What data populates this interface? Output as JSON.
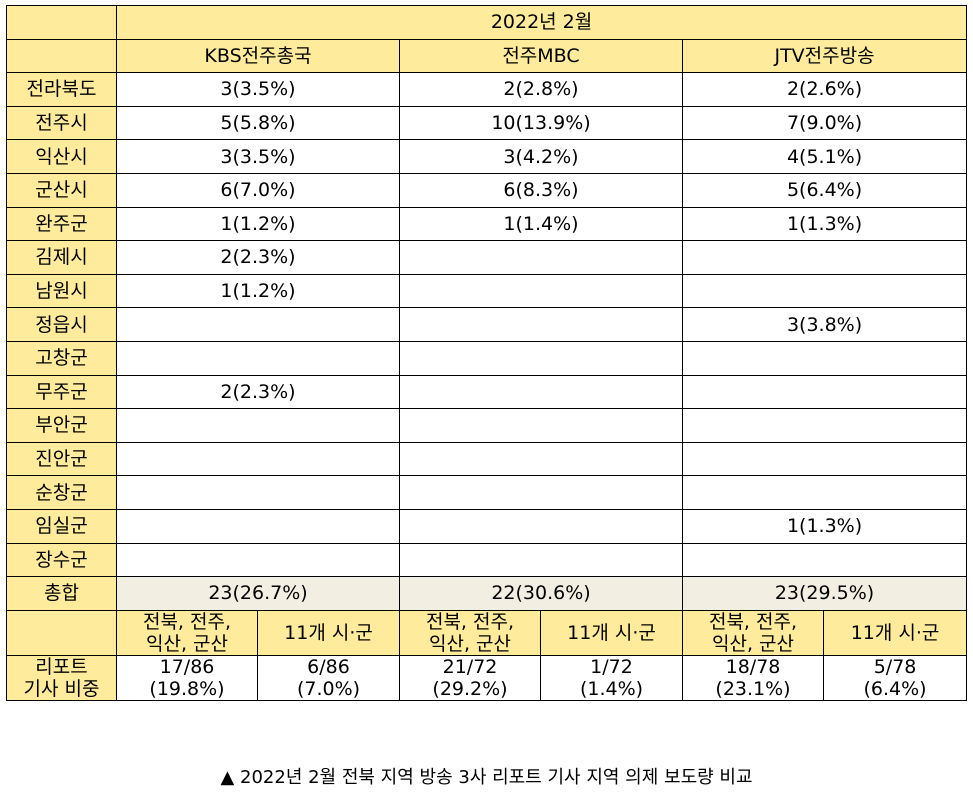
{
  "table": {
    "period": "2022년 2월",
    "broadcasters": [
      "KBS전주총국",
      "전주MBC",
      "JTV전주방송"
    ],
    "regions": [
      {
        "name": "전라북도",
        "values": [
          "3(3.5%)",
          "2(2.8%)",
          "2(2.6%)"
        ]
      },
      {
        "name": "전주시",
        "values": [
          "5(5.8%)",
          "10(13.9%)",
          "7(9.0%)"
        ]
      },
      {
        "name": "익산시",
        "values": [
          "3(3.5%)",
          "3(4.2%)",
          "4(5.1%)"
        ]
      },
      {
        "name": "군산시",
        "values": [
          "6(7.0%)",
          "6(8.3%)",
          "5(6.4%)"
        ]
      },
      {
        "name": "완주군",
        "values": [
          "1(1.2%)",
          "1(1.4%)",
          "1(1.3%)"
        ]
      },
      {
        "name": "김제시",
        "values": [
          "2(2.3%)",
          "",
          ""
        ]
      },
      {
        "name": "남원시",
        "values": [
          "1(1.2%)",
          "",
          ""
        ]
      },
      {
        "name": "정읍시",
        "values": [
          "",
          "",
          "3(3.8%)"
        ]
      },
      {
        "name": "고창군",
        "values": [
          "",
          "",
          ""
        ]
      },
      {
        "name": "무주군",
        "values": [
          "2(2.3%)",
          "",
          ""
        ]
      },
      {
        "name": "부안군",
        "values": [
          "",
          "",
          ""
        ]
      },
      {
        "name": "진안군",
        "values": [
          "",
          "",
          ""
        ]
      },
      {
        "name": "순창군",
        "values": [
          "",
          "",
          ""
        ]
      },
      {
        "name": "임실군",
        "values": [
          "",
          "",
          "1(1.3%)"
        ]
      },
      {
        "name": "장수군",
        "values": [
          "",
          "",
          ""
        ]
      }
    ],
    "total": {
      "label": "총합",
      "values": [
        "23(26.7%)",
        "22(30.6%)",
        "23(29.5%)"
      ]
    },
    "ratio_header": {
      "group_line1": "전북, 전주,",
      "group_line2": "익산, 군산",
      "rest": "11개 시·군"
    },
    "ratio": {
      "label_line1": "리포트",
      "label_line2": "기사 비중",
      "values": [
        {
          "count": "17/86",
          "pct": "(19.8%)"
        },
        {
          "count": "6/86",
          "pct": "(7.0%)"
        },
        {
          "count": "21/72",
          "pct": "(29.2%)"
        },
        {
          "count": "1/72",
          "pct": "(1.4%)"
        },
        {
          "count": "18/78",
          "pct": "(23.1%)"
        },
        {
          "count": "5/78",
          "pct": "(6.4%)"
        }
      ]
    }
  },
  "caption": "▲ 2022년 2월 전북 지역 방송 3사 리포트 기사 지역 의제 보도량 비교"
}
